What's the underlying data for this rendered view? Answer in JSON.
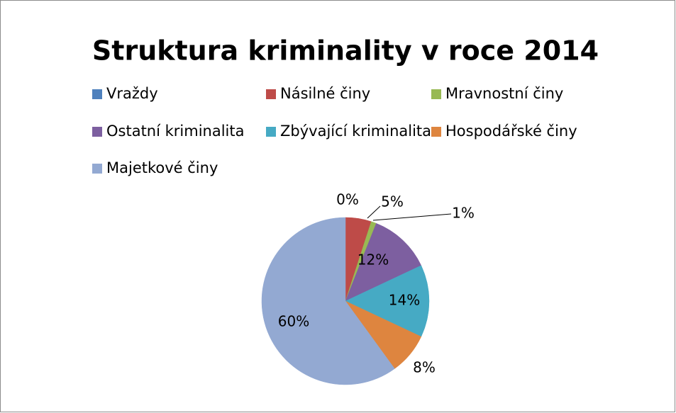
{
  "chart_data": {
    "type": "pie",
    "title": "Struktura kriminality v roce 2014",
    "categories": [
      "Vraždy",
      "Násilné činy",
      "Mravnostní činy",
      "Ostatní kriminalita",
      "Zbývající kriminalita",
      "Hospodářské činy",
      "Majetkové činy"
    ],
    "values": [
      0,
      5,
      1,
      12,
      14,
      8,
      60
    ],
    "value_labels": [
      "0%",
      "5%",
      "1%",
      "12%",
      "14%",
      "8%",
      "60%"
    ],
    "colors": [
      "#4f81bd",
      "#be4b48",
      "#98b954",
      "#7d5fa0",
      "#46aac4",
      "#de853f",
      "#93a9d2"
    ],
    "legend": "top"
  }
}
